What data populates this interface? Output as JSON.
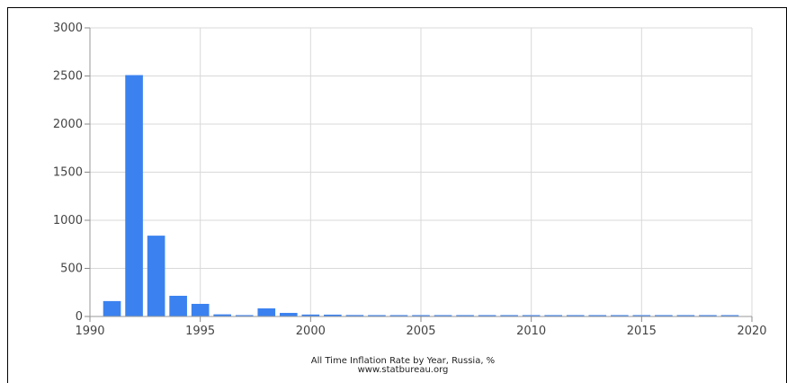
{
  "chart_data": {
    "type": "bar",
    "title": "All Time Inflation Rate by Year, Russia, %",
    "source": "www.statbureau.org",
    "bar_color": "#3b82f0",
    "grid": true,
    "xlim": [
      1990,
      2020
    ],
    "ylim": [
      0,
      3000
    ],
    "x_ticks": [
      1990,
      1995,
      2000,
      2005,
      2010,
      2015,
      2020
    ],
    "y_ticks": [
      0,
      500,
      1000,
      1500,
      2000,
      2500,
      3000
    ],
    "x": [
      1991,
      1992,
      1993,
      1994,
      1995,
      1996,
      1997,
      1998,
      1999,
      2000,
      2001,
      2002,
      2003,
      2004,
      2005,
      2006,
      2007,
      2008,
      2009,
      2010,
      2011,
      2012,
      2013,
      2014,
      2015,
      2016,
      2017,
      2018,
      2019
    ],
    "values": [
      160,
      2509,
      840,
      215,
      131,
      22,
      11,
      84,
      37,
      20,
      19,
      15,
      12,
      12,
      11,
      9,
      12,
      13,
      9,
      9,
      6,
      7,
      6,
      11,
      13,
      5,
      3,
      4,
      3
    ]
  }
}
